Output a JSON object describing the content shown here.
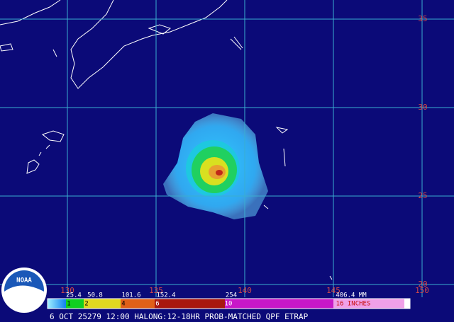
{
  "map": {
    "latitude_labels": [
      "35",
      "30",
      "25",
      "20"
    ],
    "longitude_labels": [
      "130",
      "135",
      "140",
      "145",
      "150"
    ],
    "logo": "NOAA"
  },
  "legend": {
    "mm_labels": [
      "25.4",
      "50.8",
      "101.6",
      "152.4",
      "254",
      "406.4 MM"
    ],
    "inch_labels": [
      "1",
      "2",
      "4",
      "6",
      "10",
      "16 INCHES"
    ]
  },
  "caption": "6 OCT 25279 12:00 HALONG:12-18HR PROB-MATCHED QPF ETRAP"
}
